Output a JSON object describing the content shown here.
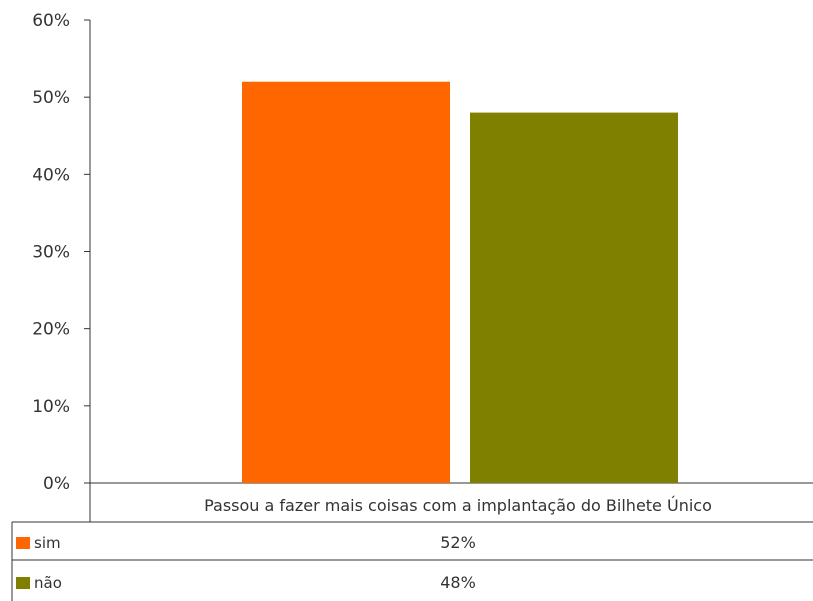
{
  "chart_data": {
    "type": "bar",
    "categories": [
      "Passou a fazer mais coisas com a implantação do Bilhete Único"
    ],
    "series": [
      {
        "name": "sim",
        "values": [
          52
        ],
        "color": "#ff6600",
        "label": "52%"
      },
      {
        "name": "não",
        "values": [
          48
        ],
        "color": "#808000",
        "label": "48%"
      }
    ],
    "ylim": [
      0,
      60
    ],
    "yticks": [
      "0%",
      "10%",
      "20%",
      "30%",
      "40%",
      "50%",
      "60%"
    ],
    "legend": "data-table below chart",
    "grid": false
  }
}
